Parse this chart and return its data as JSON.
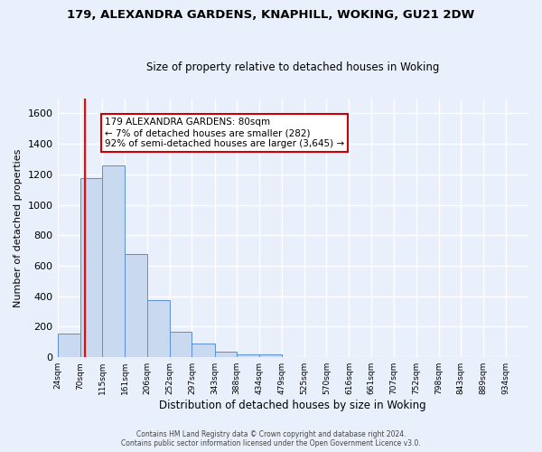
{
  "title": "179, ALEXANDRA GARDENS, KNAPHILL, WOKING, GU21 2DW",
  "subtitle": "Size of property relative to detached houses in Woking",
  "xlabel": "Distribution of detached houses by size in Woking",
  "ylabel": "Number of detached properties",
  "bin_labels": [
    "24sqm",
    "70sqm",
    "115sqm",
    "161sqm",
    "206sqm",
    "252sqm",
    "297sqm",
    "343sqm",
    "388sqm",
    "434sqm",
    "479sqm",
    "525sqm",
    "570sqm",
    "616sqm",
    "661sqm",
    "707sqm",
    "752sqm",
    "798sqm",
    "843sqm",
    "889sqm",
    "934sqm"
  ],
  "bin_edges": [
    24,
    70,
    115,
    161,
    206,
    252,
    297,
    343,
    388,
    434,
    479,
    525,
    570,
    616,
    661,
    707,
    752,
    798,
    843,
    889,
    934,
    980
  ],
  "bar_heights": [
    155,
    1175,
    1260,
    680,
    375,
    170,
    90,
    35,
    20,
    18,
    0,
    0,
    0,
    0,
    0,
    0,
    0,
    0,
    0,
    0,
    0
  ],
  "bar_color": "#c9d9f0",
  "bar_edgecolor": "#5b8dd9",
  "ylim": [
    0,
    1700
  ],
  "yticks": [
    0,
    200,
    400,
    600,
    800,
    1000,
    1200,
    1400,
    1600
  ],
  "property_size": 80,
  "annotation_text": "179 ALEXANDRA GARDENS: 80sqm\n← 7% of detached houses are smaller (282)\n92% of semi-detached houses are larger (3,645) →",
  "annotation_box_color": "#ffffff",
  "annotation_box_edgecolor": "#cc0000",
  "background_color": "#eaf0fb",
  "grid_color": "#ffffff",
  "footer_line1": "Contains HM Land Registry data © Crown copyright and database right 2024.",
  "footer_line2": "Contains public sector information licensed under the Open Government Licence v3.0.",
  "property_line_x": 80
}
